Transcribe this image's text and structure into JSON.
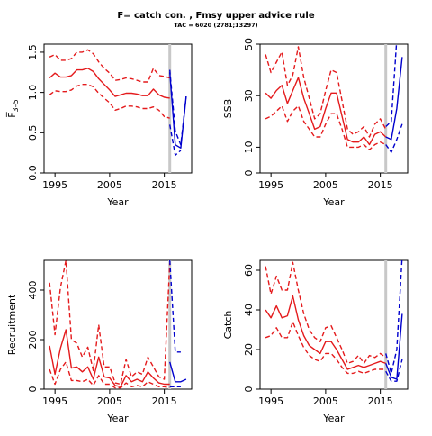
{
  "figure": {
    "title": "F= catch con. , Fmsy upper advice rule",
    "subtitle": "TAC = 6020 (2781;13297)"
  },
  "chart_data": [
    {
      "type": "line",
      "ylabel": "F̅",
      "ylabel_sub": "3–5",
      "xlabel": "Year",
      "xlim": [
        1993,
        2020
      ],
      "ylim": [
        0,
        1.6
      ],
      "xticks": [
        1995,
        2005,
        2015
      ],
      "yticks": [
        0,
        0.5,
        1.0,
        1.5
      ],
      "ytick_labels": [
        "0.0",
        "0.5",
        "1.0",
        "1.5"
      ],
      "vline": 2016,
      "series": [
        {
          "role": "hist-median",
          "style": "solid",
          "color": "#e41a1c",
          "x": [
            1994,
            1995,
            1996,
            1997,
            1998,
            1999,
            2000,
            2001,
            2002,
            2003,
            2004,
            2005,
            2006,
            2007,
            2008,
            2009,
            2010,
            2011,
            2012,
            2013,
            2014,
            2015,
            2016
          ],
          "y": [
            1.18,
            1.24,
            1.19,
            1.19,
            1.21,
            1.28,
            1.28,
            1.3,
            1.26,
            1.17,
            1.1,
            1.03,
            0.95,
            0.97,
            0.99,
            0.99,
            0.98,
            0.96,
            0.96,
            1.04,
            0.97,
            0.94,
            0.93
          ]
        },
        {
          "role": "hist-upper",
          "style": "dashed",
          "color": "#e41a1c",
          "x": [
            1994,
            1995,
            1996,
            1997,
            1998,
            1999,
            2000,
            2001,
            2002,
            2003,
            2004,
            2005,
            2006,
            2007,
            2008,
            2009,
            2010,
            2011,
            2012,
            2013,
            2014,
            2015,
            2016
          ],
          "y": [
            1.44,
            1.47,
            1.4,
            1.4,
            1.42,
            1.5,
            1.5,
            1.53,
            1.48,
            1.38,
            1.3,
            1.24,
            1.15,
            1.16,
            1.18,
            1.17,
            1.15,
            1.13,
            1.13,
            1.3,
            1.21,
            1.2,
            1.18
          ]
        },
        {
          "role": "hist-lower",
          "style": "dashed",
          "color": "#e41a1c",
          "x": [
            1994,
            1995,
            1996,
            1997,
            1998,
            1999,
            2000,
            2001,
            2002,
            2003,
            2004,
            2005,
            2006,
            2007,
            2008,
            2009,
            2010,
            2011,
            2012,
            2013,
            2014,
            2015,
            2016
          ],
          "y": [
            0.97,
            1.02,
            1.01,
            1.01,
            1.03,
            1.08,
            1.1,
            1.1,
            1.07,
            0.99,
            0.93,
            0.87,
            0.78,
            0.8,
            0.83,
            0.83,
            0.82,
            0.8,
            0.8,
            0.82,
            0.78,
            0.7,
            0.68
          ]
        },
        {
          "role": "proj-median",
          "style": "solid",
          "color": "#0000cd",
          "x": [
            2016,
            2017,
            2018,
            2019
          ],
          "y": [
            1.25,
            0.35,
            0.31,
            0.95
          ]
        },
        {
          "role": "proj-upper",
          "style": "dashed",
          "color": "#0000cd",
          "x": [
            2016,
            2017,
            2018,
            2019
          ],
          "y": [
            1.28,
            0.52,
            0.35,
            0.95
          ]
        },
        {
          "role": "proj-lower",
          "style": "dashed",
          "color": "#0000cd",
          "x": [
            2016,
            2017,
            2018
          ],
          "y": [
            0.6,
            0.22,
            0.28
          ]
        }
      ]
    },
    {
      "type": "line",
      "ylabel": "SSB",
      "xlabel": "Year",
      "xlim": [
        1993,
        2020
      ],
      "ylim": [
        0,
        50
      ],
      "xticks": [
        1995,
        2005,
        2015
      ],
      "yticks": [
        0,
        10,
        30,
        50
      ],
      "ytick_labels": [
        "0",
        "10",
        "30",
        "50"
      ],
      "vline": 2016,
      "series": [
        {
          "role": "hist-median",
          "style": "solid",
          "color": "#e41a1c",
          "x": [
            1994,
            1995,
            1996,
            1997,
            1998,
            1999,
            2000,
            2001,
            2002,
            2003,
            2004,
            2005,
            2006,
            2007,
            2008,
            2009,
            2010,
            2011,
            2012,
            2013,
            2014,
            2015,
            2016
          ],
          "y": [
            31,
            29,
            32,
            34,
            27,
            32,
            37,
            29,
            23,
            17,
            18,
            25,
            31,
            31,
            22,
            13,
            12,
            12,
            14,
            11,
            15,
            16,
            14
          ]
        },
        {
          "role": "hist-upper",
          "style": "dashed",
          "color": "#e41a1c",
          "x": [
            1994,
            1995,
            1996,
            1997,
            1998,
            1999,
            2000,
            2001,
            2002,
            2003,
            2004,
            2005,
            2006,
            2007,
            2008,
            2009,
            2010,
            2011,
            2012,
            2013,
            2014,
            2015,
            2016
          ],
          "y": [
            46,
            39,
            43,
            47,
            34,
            38,
            49,
            37,
            29,
            21,
            23,
            32,
            40,
            39,
            28,
            17,
            15,
            16,
            18,
            14,
            19,
            21,
            17
          ]
        },
        {
          "role": "hist-lower",
          "style": "dashed",
          "color": "#e41a1c",
          "x": [
            1994,
            1995,
            1996,
            1997,
            1998,
            1999,
            2000,
            2001,
            2002,
            2003,
            2004,
            2005,
            2006,
            2007,
            2008,
            2009,
            2010,
            2011,
            2012,
            2013,
            2014,
            2015,
            2016
          ],
          "y": [
            21,
            22,
            24,
            26,
            20,
            24,
            26,
            20,
            17,
            14,
            14,
            19,
            23,
            23,
            17,
            10,
            10,
            10,
            11,
            9,
            11,
            12,
            11
          ]
        },
        {
          "role": "proj-median",
          "style": "solid",
          "color": "#0000cd",
          "x": [
            2016,
            2017,
            2018,
            2019
          ],
          "y": [
            14,
            13,
            25,
            45
          ]
        },
        {
          "role": "proj-upper",
          "style": "dashed",
          "color": "#0000cd",
          "x": [
            2016,
            2017,
            2018
          ],
          "y": [
            18,
            20,
            52
          ]
        },
        {
          "role": "proj-lower",
          "style": "dashed",
          "color": "#0000cd",
          "x": [
            2016,
            2017,
            2018,
            2019
          ],
          "y": [
            11,
            8,
            13,
            19
          ]
        }
      ]
    },
    {
      "type": "line",
      "ylabel": "Recruitment",
      "xlabel": "Year",
      "xlim": [
        1993,
        2020
      ],
      "ylim": [
        0,
        520
      ],
      "xticks": [
        1995,
        2005,
        2015
      ],
      "yticks": [
        0,
        200,
        400
      ],
      "ytick_labels": [
        "0",
        "200",
        "400"
      ],
      "vline": 2016,
      "series": [
        {
          "role": "hist-median",
          "style": "solid",
          "color": "#e41a1c",
          "x": [
            1994,
            1995,
            1996,
            1997,
            1998,
            1999,
            2000,
            2001,
            2002,
            2003,
            2004,
            2005,
            2006,
            2007,
            2008,
            2009,
            2010,
            2011,
            2012,
            2013,
            2014,
            2015,
            2016
          ],
          "y": [
            175,
            60,
            165,
            240,
            85,
            90,
            70,
            90,
            40,
            130,
            50,
            45,
            15,
            10,
            55,
            30,
            40,
            30,
            70,
            45,
            25,
            20,
            20
          ]
        },
        {
          "role": "hist-upper",
          "style": "dashed",
          "color": "#e41a1c",
          "x": [
            1994,
            1995,
            1996,
            1997,
            1998,
            1999,
            2000,
            2001,
            2002,
            2003,
            2004,
            2005,
            2006,
            2007,
            2008,
            2009,
            2010,
            2011,
            2012,
            2013,
            2014,
            2015,
            2016
          ],
          "y": [
            430,
            220,
            410,
            520,
            200,
            185,
            130,
            170,
            75,
            260,
            90,
            90,
            25,
            20,
            120,
            50,
            70,
            60,
            130,
            90,
            50,
            40,
            510
          ]
        },
        {
          "role": "hist-lower",
          "style": "dashed",
          "color": "#e41a1c",
          "x": [
            1994,
            1995,
            1996,
            1997,
            1998,
            1999,
            2000,
            2001,
            2002,
            2003,
            2004,
            2005,
            2006,
            2007,
            2008,
            2009,
            2010,
            2011,
            2012,
            2013,
            2014,
            2015,
            2016
          ],
          "y": [
            80,
            20,
            80,
            110,
            35,
            35,
            30,
            40,
            15,
            55,
            20,
            20,
            5,
            5,
            25,
            10,
            15,
            10,
            30,
            20,
            10,
            10,
            5
          ]
        },
        {
          "role": "proj-median",
          "style": "solid",
          "color": "#0000cd",
          "x": [
            2016,
            2017,
            2018,
            2019
          ],
          "y": [
            110,
            30,
            30,
            40
          ]
        },
        {
          "role": "proj-upper",
          "style": "dashed",
          "color": "#0000cd",
          "x": [
            2016,
            2017,
            2018
          ],
          "y": [
            520,
            150,
            150
          ]
        },
        {
          "role": "proj-lower",
          "style": "dashed",
          "color": "#0000cd",
          "x": [
            2016,
            2017,
            2018
          ],
          "y": [
            10,
            10,
            10
          ]
        }
      ]
    },
    {
      "type": "line",
      "ylabel": "Catch",
      "xlabel": "Year",
      "xlim": [
        1993,
        2020
      ],
      "ylim": [
        0,
        65
      ],
      "xticks": [
        1995,
        2005,
        2015
      ],
      "yticks": [
        0,
        20,
        40,
        60
      ],
      "ytick_labels": [
        "0",
        "20",
        "40",
        "60"
      ],
      "vline": 2016,
      "series": [
        {
          "role": "hist-median",
          "style": "solid",
          "color": "#e41a1c",
          "x": [
            1994,
            1995,
            1996,
            1997,
            1998,
            1999,
            2000,
            2001,
            2002,
            2003,
            2004,
            2005,
            2006,
            2007,
            2008,
            2009,
            2010,
            2011,
            2012,
            2013,
            2014,
            2015,
            2016
          ],
          "y": [
            40,
            36,
            42,
            36,
            37,
            47,
            35,
            27,
            22,
            20,
            18,
            24,
            24,
            20,
            15,
            10,
            11,
            12,
            11,
            12,
            13,
            14,
            13
          ]
        },
        {
          "role": "hist-upper",
          "style": "dashed",
          "color": "#e41a1c",
          "x": [
            1994,
            1995,
            1996,
            1997,
            1998,
            1999,
            2000,
            2001,
            2002,
            2003,
            2004,
            2005,
            2006,
            2007,
            2008,
            2009,
            2010,
            2011,
            2012,
            2013,
            2014,
            2015,
            2016
          ],
          "y": [
            62,
            48,
            57,
            50,
            50,
            64,
            50,
            38,
            30,
            26,
            24,
            31,
            32,
            26,
            20,
            13,
            14,
            17,
            13,
            17,
            16,
            18,
            16
          ]
        },
        {
          "role": "hist-lower",
          "style": "dashed",
          "color": "#e41a1c",
          "x": [
            1994,
            1995,
            1996,
            1997,
            1998,
            1999,
            2000,
            2001,
            2002,
            2003,
            2004,
            2005,
            2006,
            2007,
            2008,
            2009,
            2010,
            2011,
            2012,
            2013,
            2014,
            2015,
            2016
          ],
          "y": [
            26,
            27,
            31,
            26,
            26,
            34,
            27,
            21,
            17,
            15,
            14,
            18,
            18,
            15,
            11,
            8,
            8,
            9,
            8,
            9,
            10,
            10,
            10
          ]
        },
        {
          "role": "proj-median",
          "style": "solid",
          "color": "#0000cd",
          "x": [
            2016,
            2017,
            2018,
            2019
          ],
          "y": [
            13,
            6,
            5,
            38
          ]
        },
        {
          "role": "proj-upper",
          "style": "dashed",
          "color": "#0000cd",
          "x": [
            2016,
            2017,
            2018,
            2019
          ],
          "y": [
            18,
            8,
            20,
            67
          ]
        },
        {
          "role": "proj-lower",
          "style": "dashed",
          "color": "#0000cd",
          "x": [
            2016,
            2017,
            2018,
            2019
          ],
          "y": [
            9,
            4,
            4,
            15
          ]
        }
      ]
    }
  ]
}
